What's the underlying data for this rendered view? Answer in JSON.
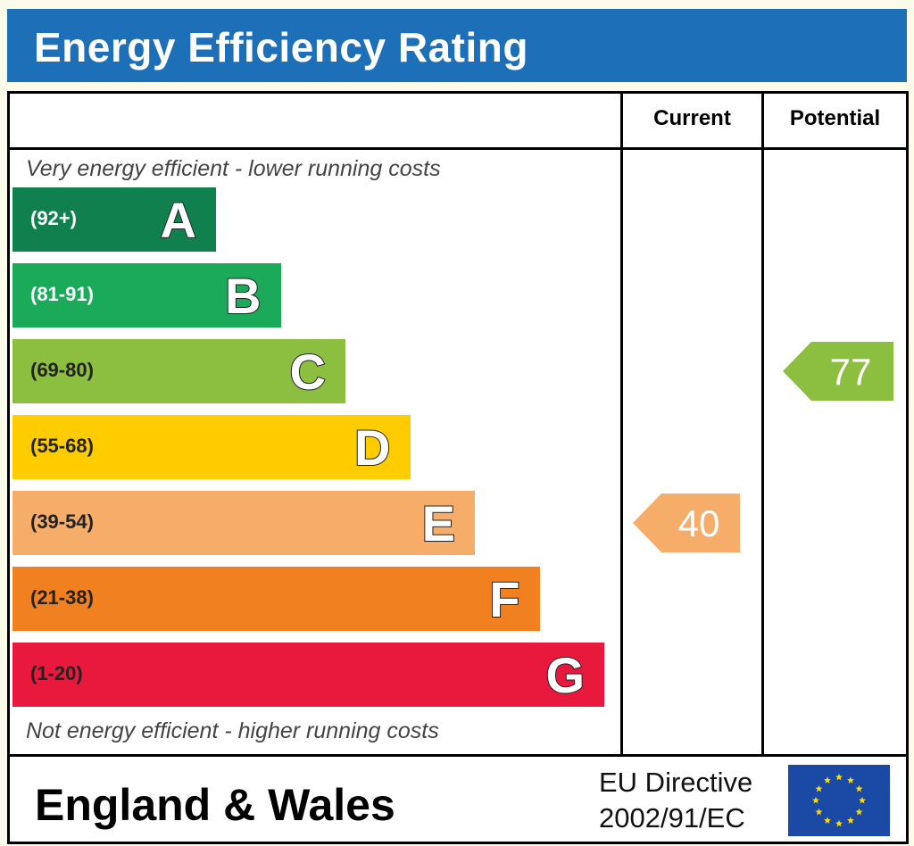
{
  "header": {
    "title": "Energy Efficiency Rating"
  },
  "columns": {
    "current": "Current",
    "potential": "Potential"
  },
  "notes": {
    "top": "Very energy efficient - lower running costs",
    "bottom": "Not energy efficient - higher running costs"
  },
  "chart_data": {
    "type": "bar",
    "title": "Energy Efficiency Rating",
    "categories": [
      "A",
      "B",
      "C",
      "D",
      "E",
      "F",
      "G"
    ],
    "ranges": [
      "(92+)",
      "(81-91)",
      "(69-80)",
      "(55-68)",
      "(39-54)",
      "(21-38)",
      "(1-20)"
    ],
    "range_min": [
      92,
      81,
      69,
      55,
      39,
      21,
      1
    ],
    "range_max": [
      100,
      91,
      80,
      68,
      54,
      38,
      20
    ],
    "colors": [
      "#11804f",
      "#1aaa5a",
      "#8cbf3f",
      "#ffcc00",
      "#f7ad6a",
      "#f08020",
      "#e8193c"
    ],
    "current": 40,
    "potential": 77,
    "current_color": "#f7ad6a",
    "potential_color": "#8cbf3f"
  },
  "footer": {
    "region": "England & Wales",
    "directive_line1": "EU Directive",
    "directive_line2": "2002/91/EC"
  }
}
